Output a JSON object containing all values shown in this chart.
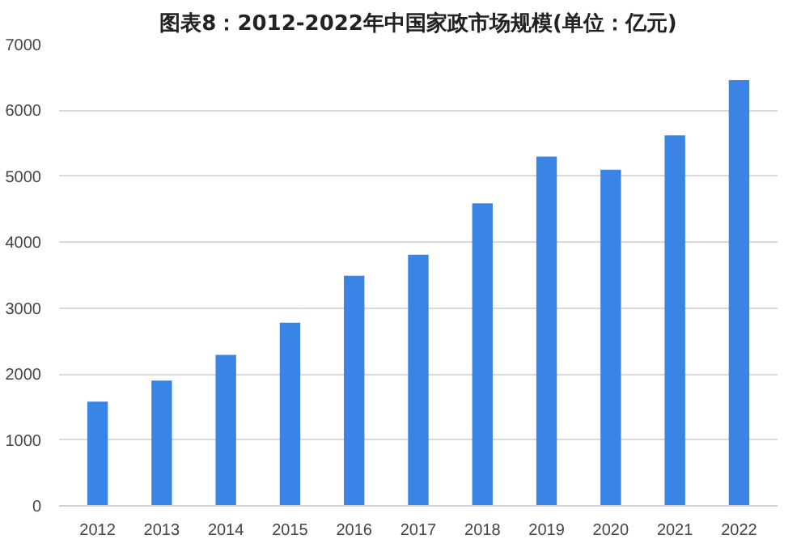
{
  "chart_data": {
    "type": "bar",
    "title": "图表8：2012-2022年中国家政市场规模(单位：亿元)",
    "categories": [
      "2012",
      "2013",
      "2014",
      "2015",
      "2016",
      "2017",
      "2018",
      "2019",
      "2020",
      "2021",
      "2022"
    ],
    "values": [
      1580,
      1900,
      2290,
      2780,
      3490,
      3810,
      4590,
      5300,
      5100,
      5620,
      6460
    ],
    "color": "#3a84e6",
    "ylim": [
      0,
      7000
    ],
    "yticks": [
      0,
      1000,
      2000,
      3000,
      4000,
      5000,
      6000,
      7000
    ],
    "grid": "y"
  }
}
